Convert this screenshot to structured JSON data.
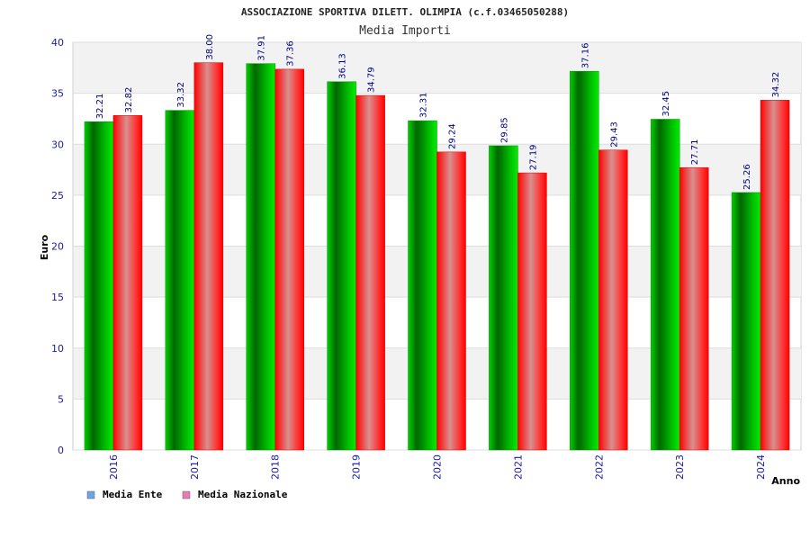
{
  "chart_data": {
    "type": "bar",
    "title": "ASSOCIAZIONE SPORTIVA DILETT. OLIMPIA (c.f.03465050288)",
    "subtitle": "Media Importi",
    "xlabel": "Anno",
    "ylabel": "Euro",
    "ylim": [
      0,
      40
    ],
    "yticks": [
      0,
      5,
      10,
      15,
      20,
      25,
      30,
      35,
      40
    ],
    "grid": true,
    "legend_position": "bottom-left",
    "categories": [
      "2016",
      "2017",
      "2018",
      "2019",
      "2020",
      "2021",
      "2022",
      "2023",
      "2024"
    ],
    "series": [
      {
        "name": "Media Ente",
        "legend_color": "#6aa5e6",
        "bar_color": "#00c000",
        "values": [
          32.21,
          33.32,
          37.91,
          36.13,
          32.31,
          29.85,
          37.16,
          32.45,
          25.26
        ],
        "labels": [
          "32.21",
          "33.32",
          "37.91",
          "36.13",
          "32.31",
          "29.85",
          "37.16",
          "32.45",
          "25.26"
        ]
      },
      {
        "name": "Media Nazionale",
        "legend_color": "#e67ab4",
        "bar_color": "#ff2020",
        "values": [
          32.82,
          38.0,
          37.36,
          34.79,
          29.24,
          27.19,
          29.43,
          27.71,
          34.32
        ],
        "labels": [
          "32.82",
          "38.00",
          "37.36",
          "34.79",
          "29.24",
          "27.19",
          "29.43",
          "27.71",
          "34.32"
        ]
      }
    ]
  }
}
